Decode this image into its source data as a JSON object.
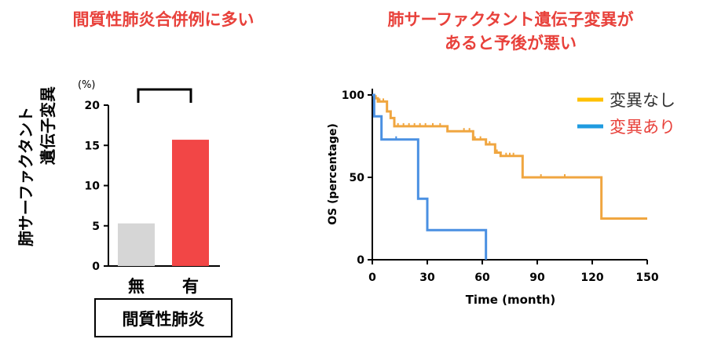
{
  "headings": {
    "left": "間質性肺炎合併例に多い",
    "right_line1": "肺サーファクタント遺伝子変異が",
    "right_line2": "あると予後が悪い"
  },
  "chart_data": [
    {
      "type": "bar",
      "ylabel_line1": "肺サーファクタント",
      "ylabel_line2": "遺伝子変異",
      "yunit": "(%)",
      "ylim": [
        0,
        20
      ],
      "yticks": [
        "0",
        "5",
        "10",
        "15",
        "20"
      ],
      "categories": [
        "無",
        "有"
      ],
      "values": [
        5.3,
        15.7
      ],
      "colors": [
        "#d6d6d6",
        "#f24646"
      ],
      "xlabel": "間質性肺炎",
      "significance_bracket": true
    },
    {
      "type": "line",
      "subtype": "kaplan-meier",
      "xlabel": "Time (month)",
      "ylabel": "OS  (percentage)",
      "xlim": [
        0,
        150
      ],
      "ylim": [
        0,
        100
      ],
      "xticks": [
        "0",
        "30",
        "60",
        "90",
        "120",
        "150"
      ],
      "yticks": [
        "0",
        "50",
        "100"
      ],
      "series": [
        {
          "name": "変異なし",
          "color": "#f0a640",
          "label_color": "#333333",
          "legend_color": "#ffc000",
          "steps": [
            [
              0,
              100
            ],
            [
              1,
              98
            ],
            [
              3,
              96
            ],
            [
              8,
              90
            ],
            [
              10,
              86
            ],
            [
              12,
              81
            ],
            [
              41,
              78
            ],
            [
              55,
              73
            ],
            [
              62,
              70
            ],
            [
              67,
              65
            ],
            [
              70,
              63
            ],
            [
              82,
              50
            ],
            [
              125,
              50
            ],
            [
              125,
              25
            ],
            [
              150,
              25
            ]
          ],
          "censor_times": [
            2,
            4,
            6,
            14,
            17,
            20,
            23,
            26,
            29,
            33,
            37,
            50,
            53,
            56,
            59,
            64,
            68,
            73,
            75,
            77,
            92,
            105
          ]
        },
        {
          "name": "変異あり",
          "color": "#4a90e2",
          "label_color": "#e8413b",
          "legend_color": "#1f9be0",
          "steps": [
            [
              0,
              100
            ],
            [
              1,
              87
            ],
            [
              5,
              73
            ],
            [
              24,
              73
            ],
            [
              25,
              37
            ],
            [
              29,
              37
            ],
            [
              30,
              18
            ],
            [
              62,
              18
            ],
            [
              62,
              0
            ]
          ],
          "censor_times": [
            13
          ]
        }
      ]
    }
  ]
}
